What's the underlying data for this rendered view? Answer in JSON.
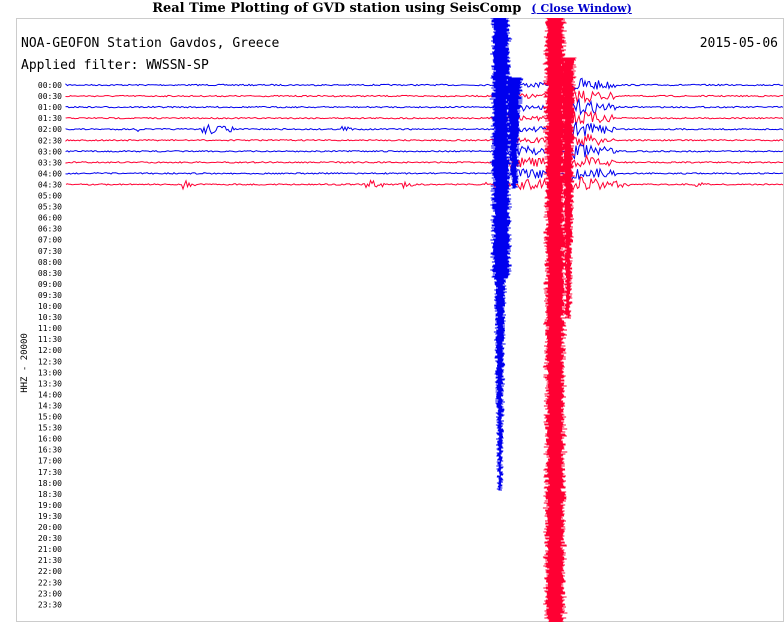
{
  "page": {
    "title": "Real Time Plotting of GVD station using SeisComp",
    "close_link_prefix": "(",
    "close_link_label": "Close Window",
    "close_link_suffix": ")"
  },
  "plot": {
    "station_label": "NOA-GEOFON Station Gavdos, Greece",
    "date": "2015-05-06",
    "filter_label": "Applied filter: WWSSN-SP",
    "channel_label": "HHZ - 20000",
    "time_labels": [
      "00:00",
      "00:30",
      "01:00",
      "01:30",
      "02:00",
      "02:30",
      "03:00",
      "03:30",
      "04:00",
      "04:30",
      "05:00",
      "05:30",
      "06:00",
      "06:30",
      "07:00",
      "07:30",
      "08:00",
      "08:30",
      "09:00",
      "09:30",
      "10:00",
      "10:30",
      "11:00",
      "11:30",
      "12:00",
      "12:30",
      "13:00",
      "13:30",
      "14:00",
      "14:30",
      "15:00",
      "15:30",
      "16:00",
      "16:30",
      "17:00",
      "17:30",
      "18:00",
      "18:30",
      "19:00",
      "19:30",
      "20:00",
      "20:30",
      "21:00",
      "21:30",
      "22:00",
      "22:30",
      "23:00",
      "23:30"
    ],
    "active_traces": 10
  },
  "colors": {
    "trace_even": "#0000ee",
    "trace_odd": "#ff0033",
    "frame": "#cccccc",
    "text": "#000000",
    "link": "#0000cc"
  }
}
